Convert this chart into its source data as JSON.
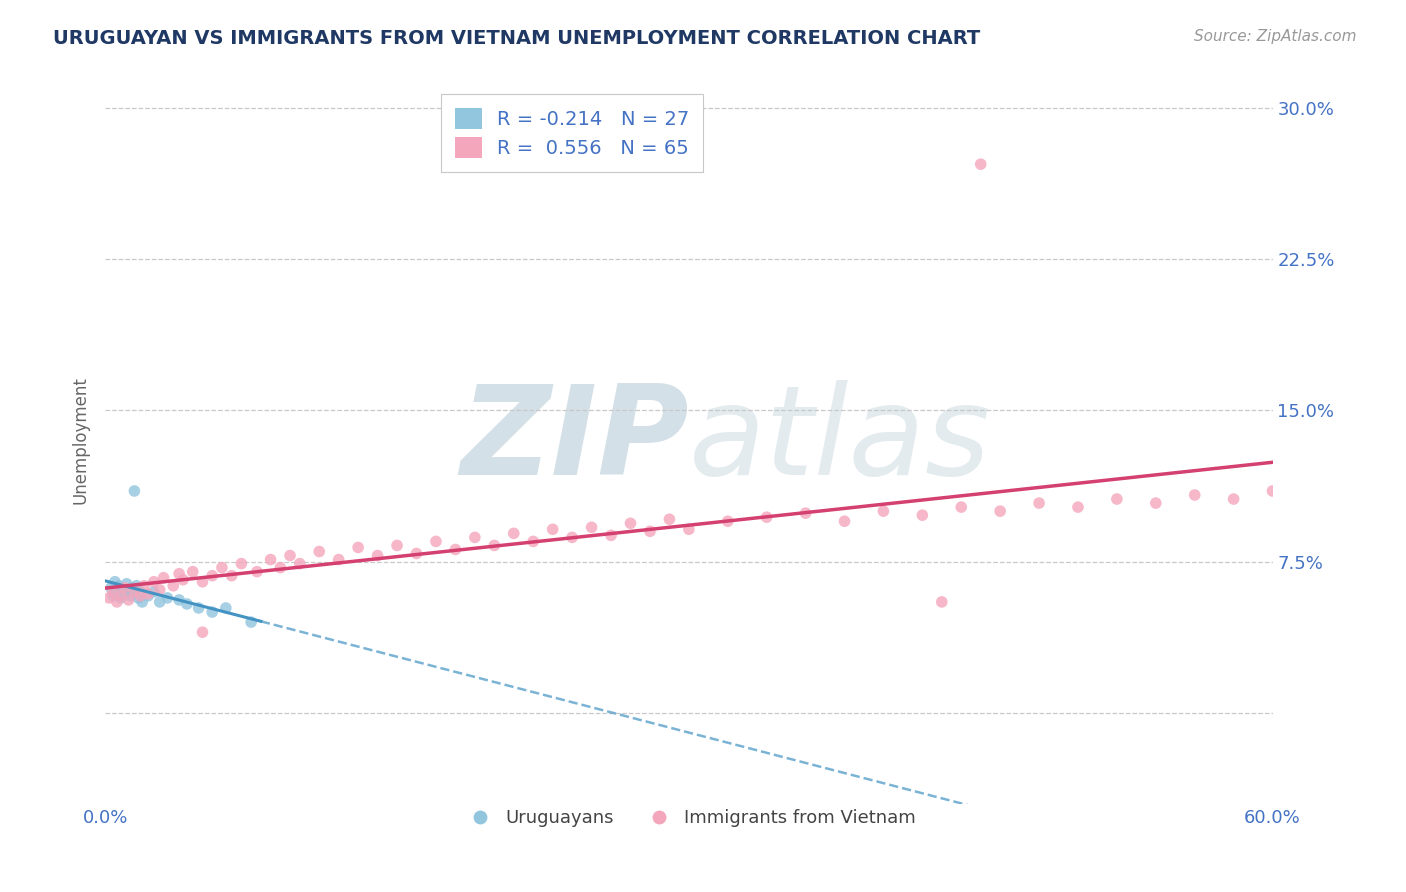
{
  "title": "URUGUAYAN VS IMMIGRANTS FROM VIETNAM UNEMPLOYMENT CORRELATION CHART",
  "source": "Source: ZipAtlas.com",
  "ylabel_label": "Unemployment",
  "xmin": 0.0,
  "xmax": 0.6,
  "ymin": -0.045,
  "ymax": 0.315,
  "color_blue": "#92c5de",
  "color_blue_line": "#4393c3",
  "color_pink": "#f4a6bc",
  "color_pink_line": "#d44070",
  "color_title": "#1f3864",
  "color_axis": "#4472c4",
  "color_label": "#666666",
  "color_grid": "#c8c8c8",
  "color_source": "#999999",
  "watermark_color": "#ccd8e4",
  "legend_r1": "R = -0.214",
  "legend_n1": "N = 27",
  "legend_r2": "R =  0.556",
  "legend_n2": "N = 65",
  "uru_x": [
    0.003,
    0.004,
    0.005,
    0.006,
    0.007,
    0.008,
    0.009,
    0.01,
    0.011,
    0.012,
    0.013,
    0.014,
    0.015,
    0.016,
    0.017,
    0.018,
    0.019,
    0.022,
    0.025,
    0.028,
    0.032,
    0.038,
    0.042,
    0.048,
    0.055,
    0.062,
    0.075
  ],
  "uru_y": [
    0.062,
    0.058,
    0.065,
    0.06,
    0.063,
    0.057,
    0.061,
    0.059,
    0.064,
    0.06,
    0.058,
    0.062,
    0.11,
    0.063,
    0.057,
    0.06,
    0.055,
    0.058,
    0.06,
    0.055,
    0.057,
    0.056,
    0.054,
    0.052,
    0.05,
    0.052,
    0.045
  ],
  "viet_x": [
    0.002,
    0.004,
    0.006,
    0.008,
    0.01,
    0.012,
    0.015,
    0.018,
    0.02,
    0.022,
    0.025,
    0.028,
    0.03,
    0.035,
    0.038,
    0.04,
    0.045,
    0.05,
    0.055,
    0.06,
    0.065,
    0.07,
    0.078,
    0.085,
    0.09,
    0.095,
    0.1,
    0.11,
    0.12,
    0.13,
    0.14,
    0.15,
    0.16,
    0.17,
    0.18,
    0.19,
    0.2,
    0.21,
    0.22,
    0.23,
    0.24,
    0.25,
    0.26,
    0.27,
    0.28,
    0.29,
    0.3,
    0.32,
    0.34,
    0.36,
    0.38,
    0.4,
    0.42,
    0.44,
    0.46,
    0.48,
    0.5,
    0.52,
    0.54,
    0.56,
    0.58,
    0.6,
    0.45,
    0.43,
    0.05
  ],
  "viet_y": [
    0.057,
    0.06,
    0.055,
    0.058,
    0.062,
    0.056,
    0.06,
    0.058,
    0.063,
    0.059,
    0.065,
    0.061,
    0.067,
    0.063,
    0.069,
    0.066,
    0.07,
    0.065,
    0.068,
    0.072,
    0.068,
    0.074,
    0.07,
    0.076,
    0.072,
    0.078,
    0.074,
    0.08,
    0.076,
    0.082,
    0.078,
    0.083,
    0.079,
    0.085,
    0.081,
    0.087,
    0.083,
    0.089,
    0.085,
    0.091,
    0.087,
    0.092,
    0.088,
    0.094,
    0.09,
    0.096,
    0.091,
    0.095,
    0.097,
    0.099,
    0.095,
    0.1,
    0.098,
    0.102,
    0.1,
    0.104,
    0.102,
    0.106,
    0.104,
    0.108,
    0.106,
    0.11,
    0.272,
    0.055,
    0.04
  ]
}
